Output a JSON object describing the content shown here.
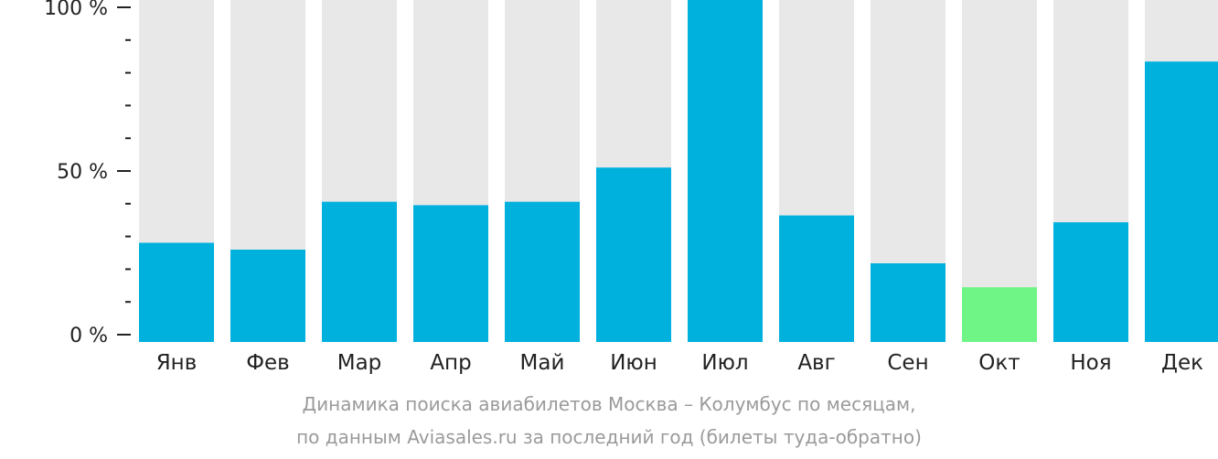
{
  "chart_data": {
    "type": "bar",
    "categories": [
      "Янв",
      "Фев",
      "Мар",
      "Апр",
      "Май",
      "Июн",
      "Июл",
      "Авг",
      "Сен",
      "Окт",
      "Ноя",
      "Дек"
    ],
    "values": [
      29,
      27,
      41,
      40,
      41,
      51,
      100,
      37,
      23,
      16,
      35,
      82
    ],
    "ylim": [
      0,
      100
    ],
    "yticks": [
      {
        "value": 100,
        "label": "100 %"
      },
      {
        "value": 50,
        "label": "50 %"
      },
      {
        "value": 0,
        "label": "0 %"
      }
    ],
    "minor_tick_step": 10,
    "highlight_index": 9,
    "colors": {
      "bar": "#00b1de",
      "highlight": "#6ef585",
      "background_bar": "#e8e8e8",
      "axis": "#222222"
    },
    "caption_line1": "Динамика поиска авиабилетов Москва – Колумбус по месяцам,",
    "caption_line2": "по данным Aviasales.ru за последний год (билеты туда-обратно)"
  }
}
